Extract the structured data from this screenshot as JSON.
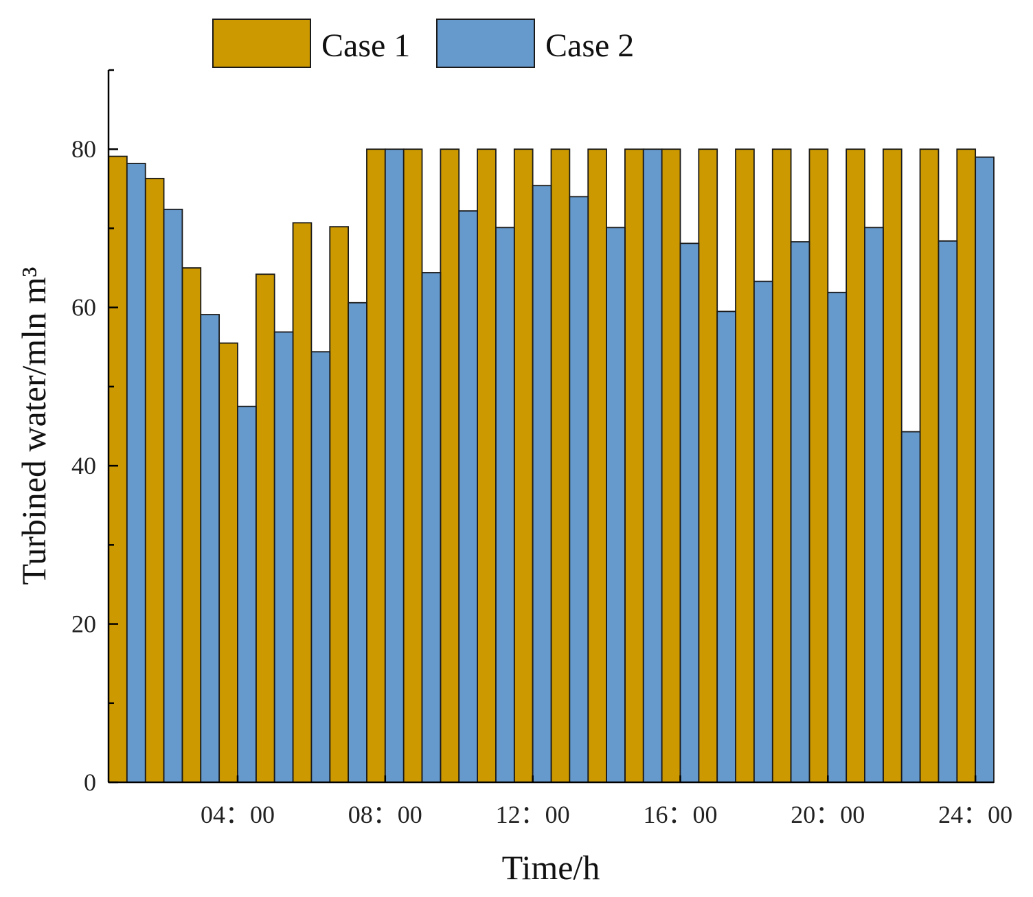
{
  "chart_data": {
    "type": "bar",
    "title": "",
    "xlabel": "Time/h",
    "ylabel": "Turbined water/mln m³",
    "ylim": [
      0,
      90
    ],
    "yticks": [
      0,
      20,
      40,
      60,
      80
    ],
    "x": [
      1,
      2,
      3,
      4,
      5,
      6,
      7,
      8,
      9,
      10,
      11,
      12,
      13,
      14,
      15,
      16,
      17,
      18,
      19,
      20,
      21,
      22,
      23,
      24
    ],
    "xticks": [
      {
        "hour": 4,
        "label": "04：00"
      },
      {
        "hour": 8,
        "label": "08：00"
      },
      {
        "hour": 12,
        "label": "12：00"
      },
      {
        "hour": 16,
        "label": "16：00"
      },
      {
        "hour": 20,
        "label": "20：00"
      },
      {
        "hour": 24,
        "label": "24：00"
      }
    ],
    "series": [
      {
        "name": "Case 1",
        "color": "#cc9900",
        "values": [
          79.1,
          76.3,
          65.0,
          55.5,
          64.2,
          70.7,
          70.2,
          80,
          80,
          80,
          80,
          80,
          80,
          80,
          80,
          80,
          80,
          80,
          80,
          80,
          80,
          80,
          80,
          80
        ]
      },
      {
        "name": "Case 2",
        "color": "#6699cc",
        "values": [
          78.2,
          72.4,
          59.1,
          47.5,
          56.9,
          54.4,
          60.6,
          80,
          64.4,
          72.2,
          70.1,
          75.4,
          74.0,
          70.1,
          80,
          68.1,
          59.5,
          63.3,
          68.3,
          61.9,
          70.1,
          44.3,
          68.4,
          79.0
        ]
      }
    ],
    "grid": false,
    "legend_position": "top-center"
  }
}
